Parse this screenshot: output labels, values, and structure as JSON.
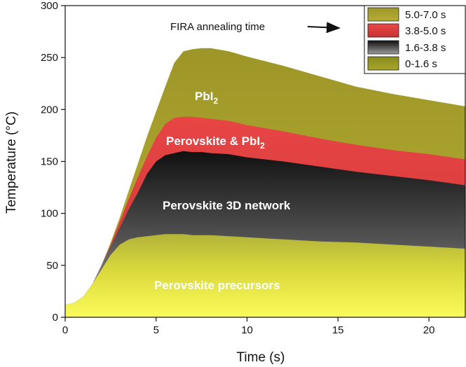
{
  "chart_data": {
    "type": "area",
    "xlabel": "Time (s)",
    "ylabel": "Temperature (°C)",
    "xlim": [
      0,
      22
    ],
    "ylim": [
      0,
      300
    ],
    "xticks": [
      0,
      5,
      10,
      15,
      20
    ],
    "yticks": [
      0,
      50,
      100,
      150,
      200,
      250,
      300
    ],
    "x": [
      0,
      0.5,
      1,
      1.5,
      2,
      2.5,
      3,
      3.5,
      4,
      4.5,
      5,
      5.5,
      6,
      6.5,
      7,
      7.5,
      8,
      9,
      10,
      12,
      14,
      16,
      18,
      20,
      22
    ],
    "series": [
      {
        "name": "0-1.6 s",
        "color": "#c8c83a",
        "values": [
          12,
          14,
          20,
          32,
          46,
          60,
          70,
          75,
          77,
          78,
          79,
          80,
          80,
          80,
          79,
          79,
          79,
          78,
          77,
          75,
          73,
          72,
          70,
          68,
          66
        ]
      },
      {
        "name": "1.6-3.8 s",
        "color": "#1a1a1a",
        "values": [
          12,
          14,
          20,
          32,
          50,
          68,
          86,
          104,
          120,
          138,
          150,
          156,
          158,
          160,
          159,
          159,
          158,
          157,
          154,
          150,
          145,
          140,
          136,
          132,
          127
        ]
      },
      {
        "name": "3.8-5.0 s",
        "color": "#e03838",
        "values": [
          12,
          14,
          20,
          32,
          50,
          70,
          92,
          114,
          135,
          155,
          173,
          186,
          192,
          193,
          193,
          192,
          191,
          189,
          185,
          179,
          172,
          166,
          161,
          157,
          152
        ]
      },
      {
        "name": "5.0-7.0 s",
        "color": "#a8a02c",
        "values": [
          12,
          14,
          20,
          32,
          50,
          72,
          96,
          122,
          148,
          174,
          198,
          222,
          245,
          256,
          258,
          259,
          259,
          256,
          251,
          242,
          232,
          222,
          215,
          209,
          203
        ]
      }
    ],
    "legend": {
      "position": "top-right"
    },
    "annotations": {
      "arrow_text": "FIRA annealing time",
      "pbi2_label": "PbI",
      "pbi2_sub": "2",
      "perov_pbi2_label": "Perovskite  & PbI",
      "perov_pbi2_sub": "2",
      "network_label": "Perovskite 3D network",
      "precursor_label": "Perovskite precursors"
    }
  }
}
